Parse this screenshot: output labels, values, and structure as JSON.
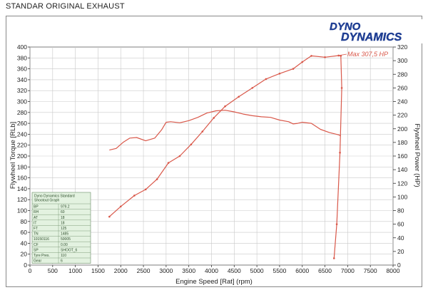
{
  "header": {
    "title": "STANDAR ORIGINAL EXHAUST"
  },
  "logo": {
    "line1": "DYNO",
    "line2": "DYNAMICS"
  },
  "colors": {
    "curve": "#d9584a",
    "grid": "#c9c9c9",
    "axis": "#333333",
    "legend_fill": "#e3f2e0",
    "logo_blue": "#1f3e93"
  },
  "chart_data": {
    "type": "line",
    "xlabel": "Engine Speed [Rat] (rpm)",
    "ylabel_left": "Flywheel Torque [RLb]",
    "ylabel_right": "Flywheel Power (HP)",
    "xlim": [
      0,
      8000
    ],
    "ylim_left": [
      0,
      400
    ],
    "ylim_right": [
      0,
      320
    ],
    "x_ticks": [
      0,
      500,
      1000,
      1500,
      2000,
      2500,
      3000,
      3500,
      4000,
      4500,
      5000,
      5500,
      6000,
      6500,
      7000,
      7500,
      8000
    ],
    "y_left_ticks": [
      0,
      20,
      40,
      60,
      80,
      100,
      120,
      140,
      160,
      180,
      200,
      220,
      240,
      260,
      280,
      300,
      320,
      340,
      360,
      380,
      400
    ],
    "y_right_ticks": [
      0,
      20,
      40,
      60,
      80,
      100,
      120,
      140,
      160,
      180,
      200,
      220,
      240,
      260,
      280,
      300,
      320
    ],
    "grid": true,
    "series": [
      {
        "axis": "left",
        "x": [
          1750,
          1900,
          2050,
          2200,
          2350,
          2550,
          2750,
          2900,
          3000,
          3100,
          3300,
          3500,
          3700,
          3900,
          4100,
          4300,
          4500,
          4700,
          4900,
          5100,
          5300,
          5500,
          5700,
          5800,
          5900,
          6000,
          6200,
          6400,
          6600,
          6800,
          6850
        ],
        "values": [
          211,
          214,
          225,
          233,
          234,
          228,
          233,
          248,
          262,
          263,
          261,
          265,
          271,
          279,
          283,
          284,
          281,
          277,
          274,
          272,
          271,
          266,
          263,
          259,
          260,
          262,
          260,
          249,
          243,
          239,
          237
        ]
      },
      {
        "axis": "right",
        "x": [
          1750,
          2000,
          2300,
          2550,
          2800,
          3050,
          3300,
          3550,
          3800,
          4050,
          4300,
          4600,
          4900,
          5200,
          5500,
          5800,
          6000,
          6200,
          6500,
          6800,
          6850,
          6870,
          6830,
          6760,
          6700
        ],
        "values": [
          71,
          86,
          102,
          111,
          126,
          150,
          160,
          177,
          196,
          216,
          233,
          247,
          260,
          273,
          281,
          288,
          298,
          307,
          305,
          307.5,
          307,
          260,
          165,
          60,
          10
        ]
      }
    ],
    "annotations": [
      {
        "text": "Max 307,5 HP"
      }
    ]
  },
  "legend": {
    "title": "Dyno Dynamics Standard Shootout Graph",
    "rows": [
      {
        "key": "BP",
        "value": "979.2"
      },
      {
        "key": "RH",
        "value": "60"
      },
      {
        "key": "AT",
        "value": "18"
      },
      {
        "key": "IT",
        "value": "18"
      },
      {
        "key": "FT",
        "value": "125"
      },
      {
        "key": "TN",
        "value": "1485"
      },
      {
        "key": "10150116",
        "value": "50005"
      },
      {
        "key": "CF",
        "value": "0.00"
      },
      {
        "key": "SP",
        "value": "SHOOT_6"
      },
      {
        "key": "Tyre Pres.",
        "value": "110"
      },
      {
        "key": "Gear",
        "value": "6"
      }
    ]
  }
}
